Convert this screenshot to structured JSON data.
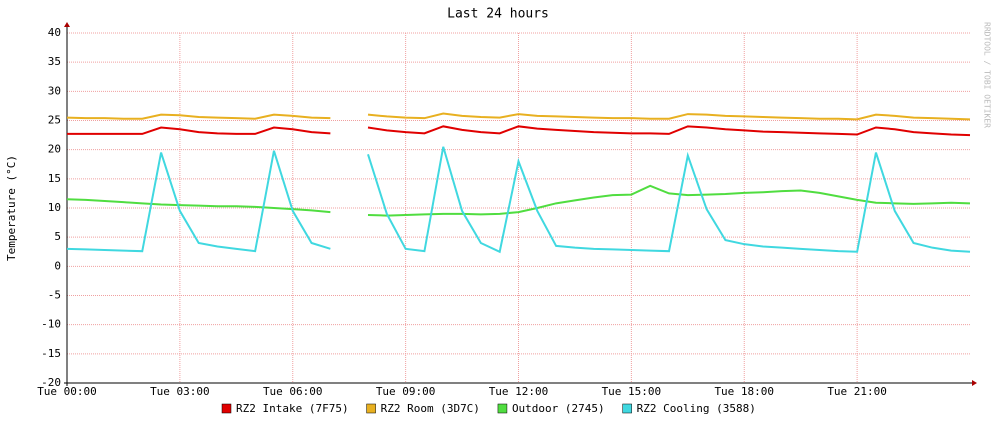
{
  "chart_data": {
    "type": "line",
    "title": "Last 24 hours",
    "y_label": "Temperature (°C)",
    "watermark": "RRDTOOL / TOBI OETIKER",
    "x": [
      0,
      0.5,
      1,
      1.5,
      2,
      2.5,
      3,
      3.5,
      4,
      4.5,
      5,
      5.5,
      6,
      6.5,
      7,
      7.5,
      8,
      8.5,
      9,
      9.5,
      10,
      10.5,
      11,
      11.5,
      12,
      12.5,
      13,
      13.5,
      14,
      14.5,
      15,
      15.5,
      16,
      16.5,
      17,
      17.5,
      18,
      18.5,
      19,
      19.5,
      20,
      20.5,
      21,
      21.5,
      22,
      22.5,
      23,
      23.5,
      24
    ],
    "xlim": [
      0,
      24
    ],
    "xticks": [
      {
        "value": 0,
        "label": "Tue 00:00"
      },
      {
        "value": 3,
        "label": "Tue 03:00"
      },
      {
        "value": 6,
        "label": "Tue 06:00"
      },
      {
        "value": 9,
        "label": "Tue 09:00"
      },
      {
        "value": 12,
        "label": "Tue 12:00"
      },
      {
        "value": 15,
        "label": "Tue 15:00"
      },
      {
        "value": 18,
        "label": "Tue 18:00"
      },
      {
        "value": 21,
        "label": "Tue 21:00"
      }
    ],
    "ylim": [
      -20,
      40
    ],
    "yticks": [
      -20,
      -15,
      -10,
      -5,
      0,
      5,
      10,
      15,
      20,
      25,
      30,
      35,
      40
    ],
    "grid": true,
    "series": [
      {
        "name": "RZ2 Intake (7F75)",
        "color": "#e00000",
        "values": [
          22.7,
          22.7,
          22.7,
          22.7,
          22.7,
          23.8,
          23.5,
          23.0,
          22.8,
          22.7,
          22.7,
          23.8,
          23.5,
          23.0,
          22.8,
          null,
          23.8,
          23.3,
          23.0,
          22.8,
          24.0,
          23.4,
          23.0,
          22.8,
          24.0,
          23.6,
          23.4,
          23.2,
          23.0,
          22.9,
          22.8,
          22.8,
          22.7,
          24.0,
          23.8,
          23.5,
          23.3,
          23.1,
          23.0,
          22.9,
          22.8,
          22.7,
          22.6,
          23.8,
          23.5,
          23.0,
          22.8,
          22.6,
          22.5
        ]
      },
      {
        "name": "RZ2 Room (3D7C)",
        "color": "#e8b020",
        "values": [
          25.5,
          25.4,
          25.4,
          25.3,
          25.3,
          26.0,
          25.9,
          25.6,
          25.5,
          25.4,
          25.3,
          26.0,
          25.8,
          25.5,
          25.4,
          null,
          26.0,
          25.7,
          25.5,
          25.4,
          26.2,
          25.8,
          25.6,
          25.5,
          26.1,
          25.8,
          25.7,
          25.6,
          25.5,
          25.4,
          25.4,
          25.3,
          25.3,
          26.1,
          26.0,
          25.8,
          25.7,
          25.6,
          25.5,
          25.4,
          25.3,
          25.3,
          25.2,
          26.0,
          25.8,
          25.5,
          25.4,
          25.3,
          25.2
        ]
      },
      {
        "name": "Outdoor (2745)",
        "color": "#50dd40",
        "values": [
          11.5,
          11.4,
          11.2,
          11.0,
          10.8,
          10.6,
          10.5,
          10.4,
          10.3,
          10.3,
          10.2,
          10.0,
          9.8,
          9.6,
          9.3,
          null,
          8.8,
          8.7,
          8.8,
          8.9,
          9.0,
          9.0,
          8.9,
          9.0,
          9.3,
          10.0,
          10.8,
          11.3,
          11.8,
          12.2,
          12.3,
          13.8,
          12.5,
          12.2,
          12.3,
          12.4,
          12.6,
          12.7,
          12.9,
          13.0,
          12.6,
          12.0,
          11.4,
          10.9,
          10.8,
          10.7,
          10.8,
          10.9,
          10.8
        ]
      },
      {
        "name": "RZ2 Cooling (3588)",
        "color": "#40d8e0",
        "values": [
          3.0,
          2.9,
          2.8,
          2.7,
          2.6,
          19.5,
          9.5,
          4.0,
          3.4,
          3.0,
          2.6,
          19.8,
          9.5,
          4.0,
          3.0,
          null,
          19.2,
          9.0,
          3.0,
          2.6,
          20.5,
          9.5,
          4.0,
          2.5,
          18.0,
          9.5,
          3.5,
          3.2,
          3.0,
          2.9,
          2.8,
          2.7,
          2.6,
          19.0,
          9.8,
          4.5,
          3.8,
          3.4,
          3.2,
          3.0,
          2.8,
          2.6,
          2.5,
          19.5,
          9.5,
          4.0,
          3.2,
          2.7,
          2.5
        ]
      }
    ]
  }
}
